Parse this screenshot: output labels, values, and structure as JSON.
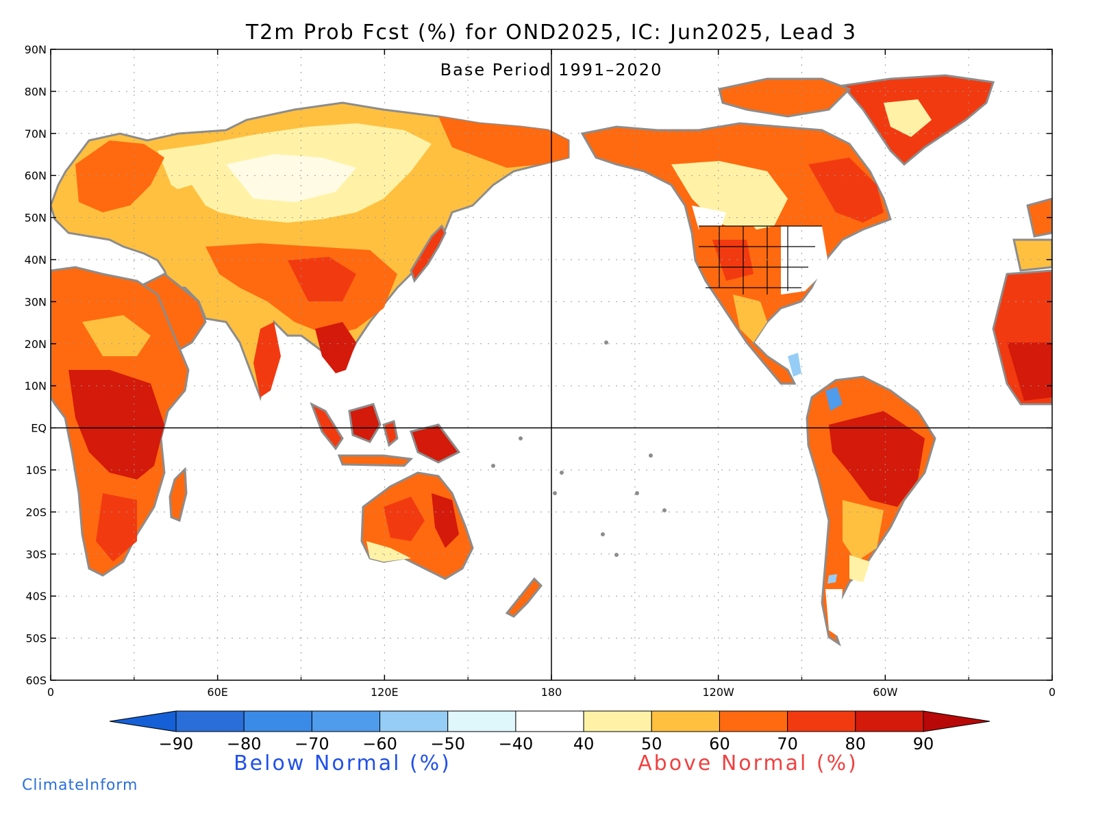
{
  "map": {
    "title": "T2m Prob Fcst (%) for OND2025, IC: Jun2025, Lead 3",
    "subtitle": "Base Period 1991–2020",
    "lat_labels": [
      "90N",
      "80N",
      "70N",
      "60N",
      "50N",
      "40N",
      "30N",
      "20N",
      "10N",
      "EQ",
      "10S",
      "20S",
      "30S",
      "40S",
      "50S",
      "60S"
    ],
    "lat_values": [
      90,
      80,
      70,
      60,
      50,
      40,
      30,
      20,
      10,
      0,
      -10,
      -20,
      -30,
      -40,
      -50,
      -60
    ],
    "lon_labels": [
      "0",
      "60E",
      "120E",
      "180",
      "120W",
      "60W",
      "0"
    ],
    "lon_values": [
      0,
      60,
      120,
      180,
      240,
      300,
      360
    ],
    "lat_range": [
      -60,
      90
    ],
    "lon_range": [
      0,
      360
    ],
    "land_color": "#ffffff",
    "coast_color": "#8c8c8c",
    "frame_color": "#000000"
  },
  "colorbar": {
    "labels": [
      "−90",
      "−80",
      "−70",
      "−60",
      "−50",
      "−40",
      "40",
      "50",
      "60",
      "70",
      "80",
      "90"
    ],
    "bins": [
      {
        "color": "#2a6fd9"
      },
      {
        "color": "#3a8ae8"
      },
      {
        "color": "#4f9bec"
      },
      {
        "color": "#96cdf6"
      },
      {
        "color": "#dff7fb"
      },
      {
        "color": "#ffffff"
      },
      {
        "color": "#fff2a6"
      },
      {
        "color": "#ffc040"
      },
      {
        "color": "#ff6a10"
      },
      {
        "color": "#f23a10"
      },
      {
        "color": "#d41a0a"
      }
    ],
    "low_end_color": "#1560d6",
    "high_end_color": "#b80808",
    "below_label": "Below Normal (%)",
    "above_label": "Above Normal (%)",
    "below_color": "#2050e8",
    "above_color": "#f04040"
  },
  "credit": {
    "text": "ClimateInform",
    "color": "#2a6fd9"
  }
}
